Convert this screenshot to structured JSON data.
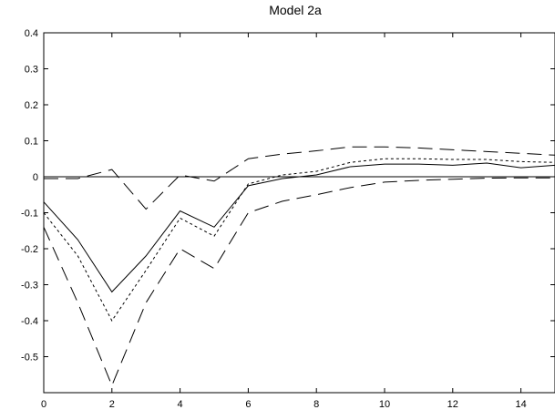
{
  "chart_data": {
    "type": "line",
    "title": "Model 2a",
    "xlabel": "",
    "ylabel": "",
    "xlim": [
      0,
      15
    ],
    "ylim": [
      -0.6,
      0.4
    ],
    "x_ticks": [
      "0",
      "2",
      "4",
      "6",
      "8",
      "10",
      "12",
      "14"
    ],
    "y_ticks": [
      "0.4",
      "0.3",
      "0.2",
      "0.1",
      "0",
      "-0.1",
      "-0.2",
      "-0.3",
      "-0.4",
      "-0.5"
    ],
    "grid": false,
    "x": [
      0,
      1,
      2,
      3,
      4,
      5,
      6,
      7,
      8,
      9,
      10,
      11,
      12,
      13,
      14,
      15
    ],
    "series": [
      {
        "style": "solid",
        "values": [
          -0.07,
          -0.175,
          -0.32,
          -0.22,
          -0.095,
          -0.14,
          -0.025,
          -0.005,
          0.005,
          0.028,
          0.035,
          0.035,
          0.032,
          0.038,
          0.025,
          0.032
        ]
      },
      {
        "style": "dotted",
        "values": [
          -0.1,
          -0.22,
          -0.4,
          -0.26,
          -0.115,
          -0.165,
          -0.02,
          0.005,
          0.015,
          0.04,
          0.05,
          0.05,
          0.048,
          0.048,
          0.042,
          0.04
        ]
      },
      {
        "style": "long-dash",
        "values": [
          -0.005,
          -0.005,
          0.02,
          -0.09,
          0.005,
          -0.012,
          0.05,
          0.063,
          0.072,
          0.083,
          0.083,
          0.08,
          0.075,
          0.07,
          0.065,
          0.06
        ]
      },
      {
        "style": "long-dash",
        "values": [
          -0.14,
          -0.35,
          -0.58,
          -0.35,
          -0.2,
          -0.255,
          -0.1,
          -0.068,
          -0.05,
          -0.03,
          -0.015,
          -0.01,
          -0.007,
          -0.004,
          -0.003,
          -0.003
        ]
      }
    ],
    "reference_lines": [
      {
        "axis": "y",
        "value": 0
      }
    ]
  }
}
